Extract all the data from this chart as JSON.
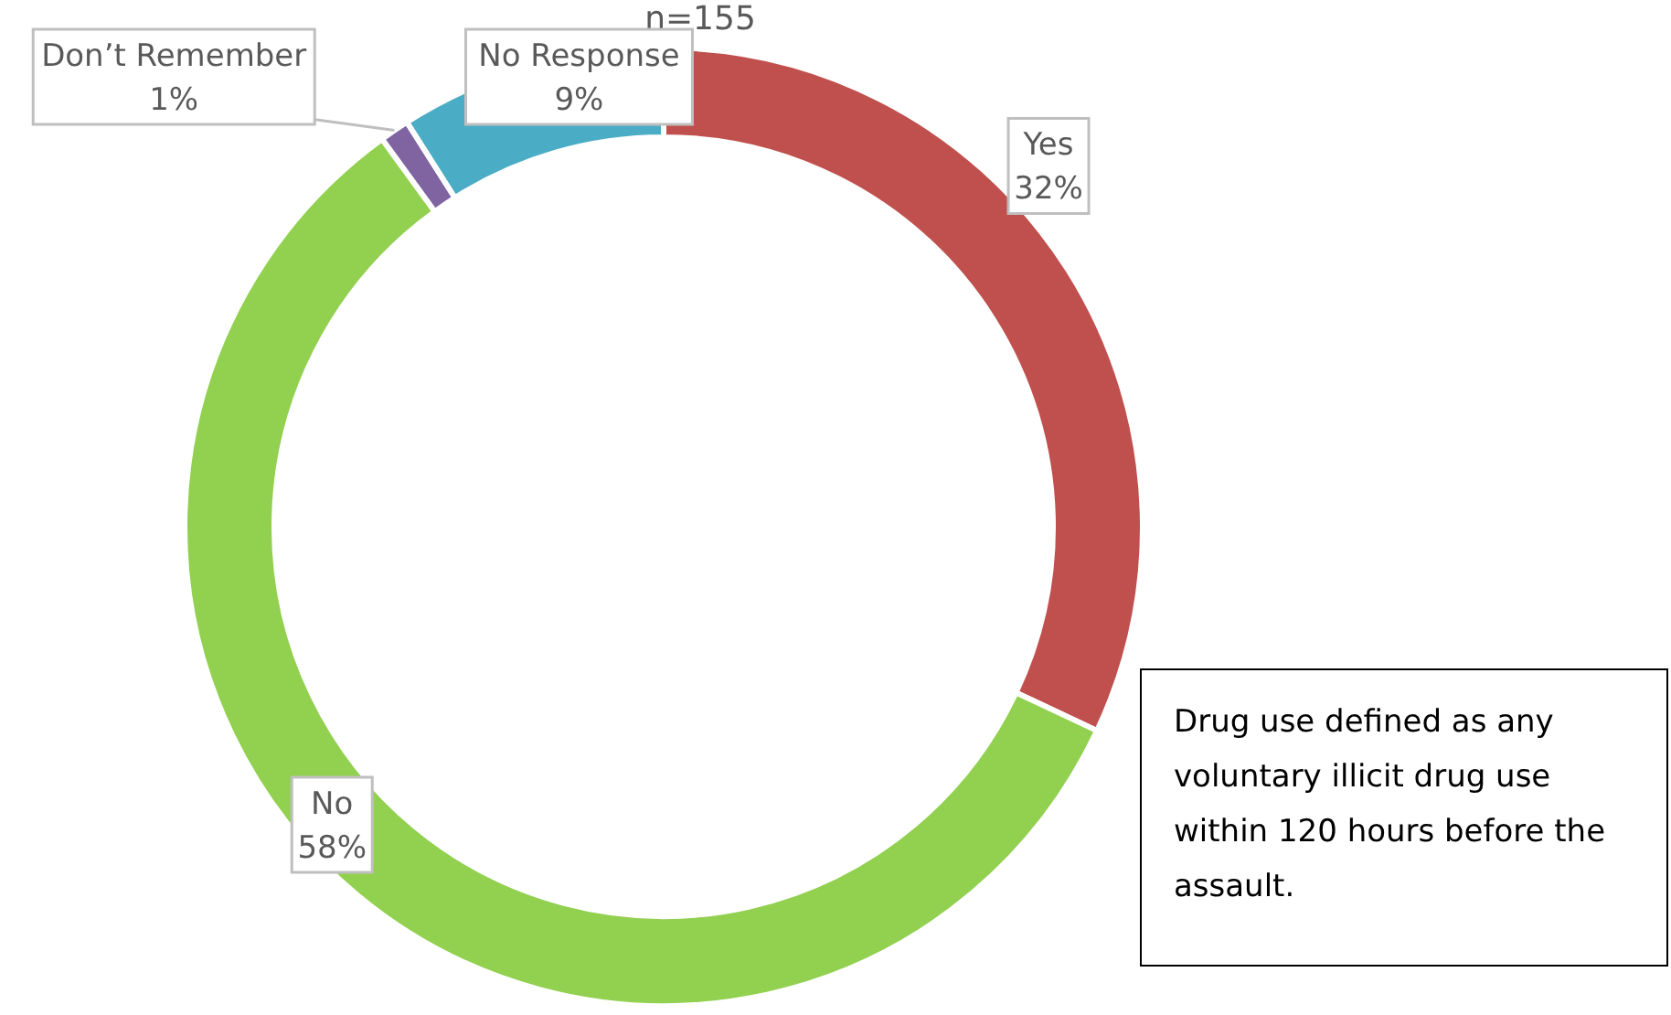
{
  "chart_data": {
    "type": "donut",
    "title": "n=155",
    "categories": [
      "Yes",
      "No",
      "Don’t Remember",
      "No Response"
    ],
    "values": [
      32,
      58,
      1,
      9
    ],
    "colors": [
      "#c0504d",
      "#92d050",
      "#8064a2",
      "#4bacc6"
    ],
    "value_labels": [
      "32%",
      "58%",
      "1%",
      "9%"
    ],
    "annotations": [
      "Drug use defined as any voluntary illicit drug use within 120 hours before the assault."
    ]
  }
}
